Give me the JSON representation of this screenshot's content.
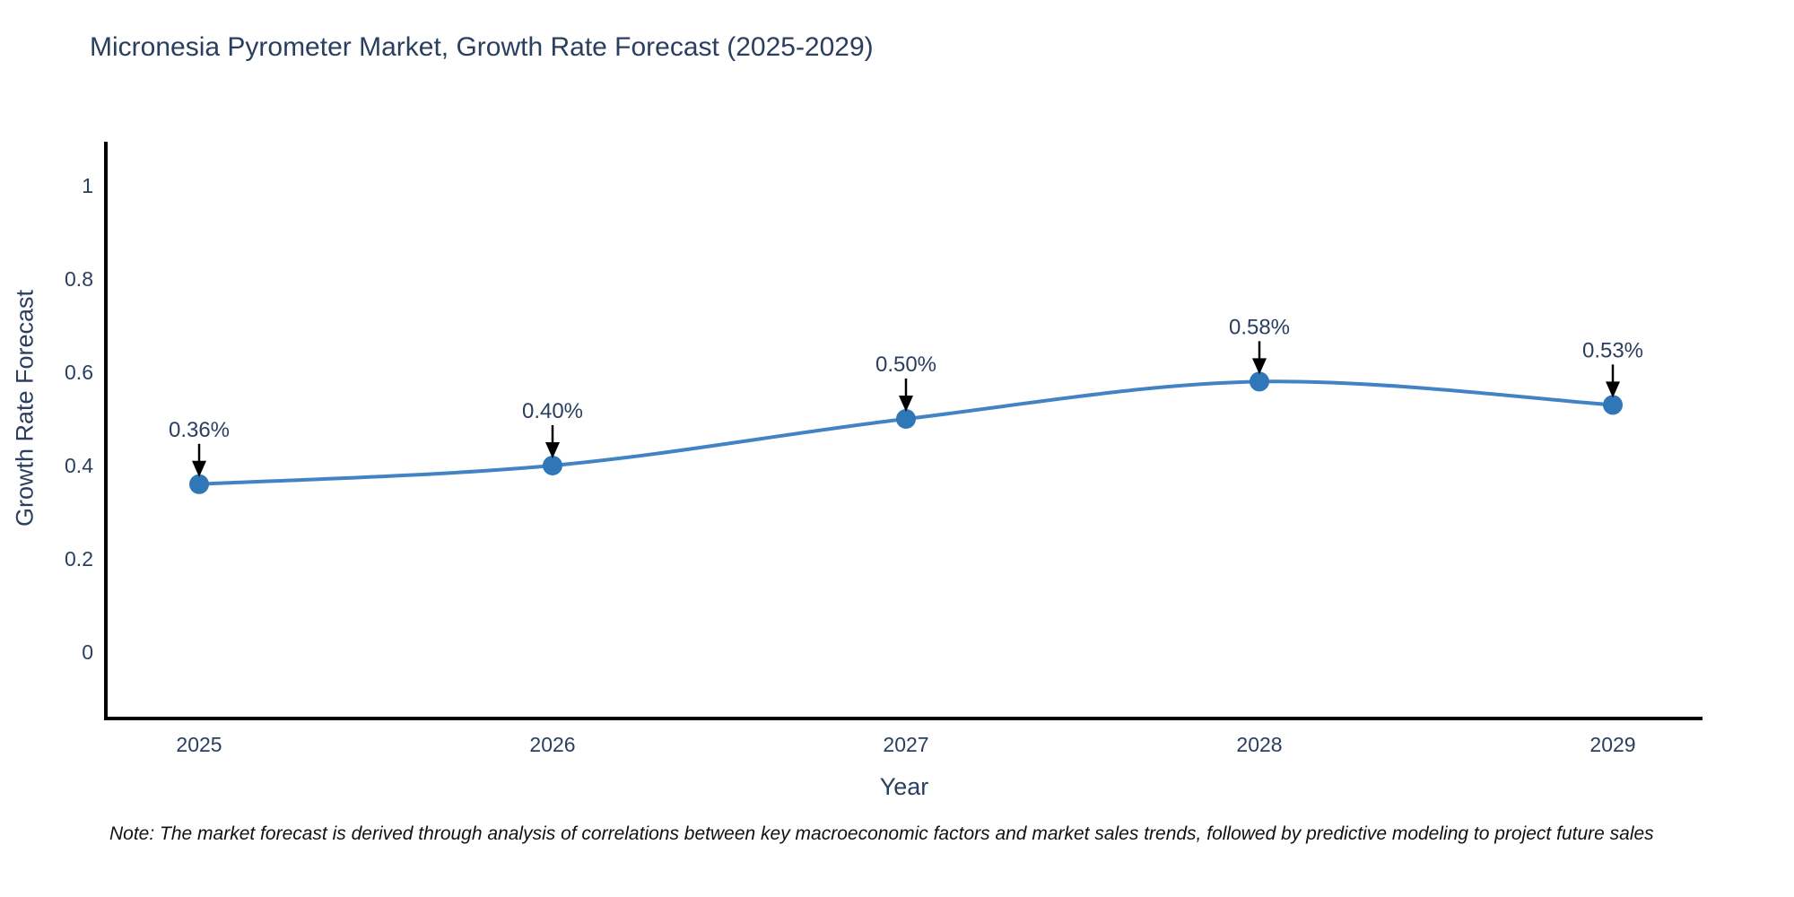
{
  "title": "Micronesia Pyrometer Market, Growth Rate Forecast (2025-2029)",
  "note": "Note: The market forecast is derived through analysis of correlations between key macroeconomic factors and market sales trends, followed by predictive modeling to project future sales",
  "chart_data": {
    "type": "line",
    "title": "Micronesia Pyrometer Market, Growth Rate Forecast (2025-2029)",
    "xlabel": "Year",
    "ylabel": "Growth Rate Forecast",
    "x": [
      2025,
      2026,
      2027,
      2028,
      2029
    ],
    "series": [
      {
        "name": "Growth Rate Forecast",
        "values": [
          0.36,
          0.4,
          0.5,
          0.58,
          0.53
        ]
      }
    ],
    "point_labels": [
      "0.36%",
      "0.40%",
      "0.50%",
      "0.58%",
      "0.53%"
    ],
    "yticks": [
      0,
      0.2,
      0.4,
      0.6,
      0.8,
      1
    ],
    "ytick_labels": [
      "0",
      "0.2",
      "0.4",
      "0.6",
      "0.8",
      "1"
    ],
    "xtick_labels": [
      "2025",
      "2026",
      "2027",
      "2028",
      "2029"
    ],
    "ylim": [
      -0.14,
      1.1
    ],
    "grid": false,
    "legend": false,
    "line_shape": "spline",
    "colors": {
      "line": "#4183c4",
      "marker": "#2f77b6",
      "axis": "#000000",
      "text": "#2a3f5f",
      "annotation_arrow": "#000000",
      "background": "#ffffff"
    }
  }
}
